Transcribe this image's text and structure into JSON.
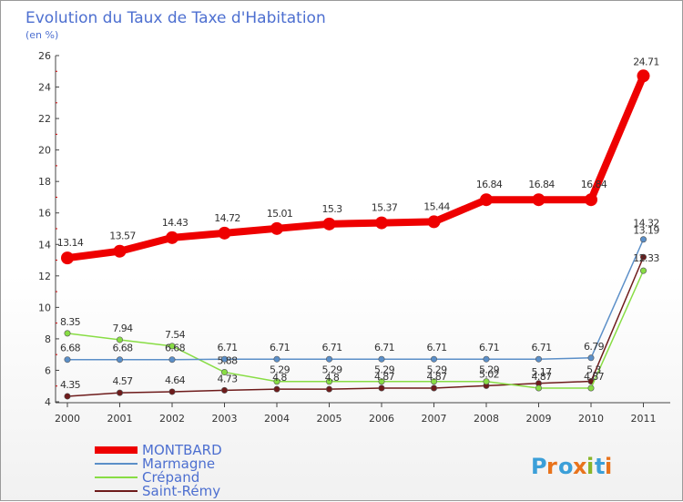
{
  "chart_data": {
    "type": "line",
    "title": "Evolution du Taux de Taxe d'Habitation",
    "subtitle": "(en %)",
    "x": [
      "2000",
      "2001",
      "2002",
      "2003",
      "2004",
      "2005",
      "2006",
      "2007",
      "2008",
      "2009",
      "2010",
      "2011"
    ],
    "ylim": [
      4,
      26
    ],
    "yticks": [
      4,
      6,
      8,
      10,
      12,
      14,
      16,
      18,
      20,
      22,
      24,
      26
    ],
    "grid": false,
    "legend_position": "bottom-left",
    "series": [
      {
        "name": "MONTBARD",
        "color": "#ee0000",
        "values": [
          13.14,
          13.57,
          14.43,
          14.72,
          15.01,
          15.3,
          15.37,
          15.44,
          16.84,
          16.84,
          16.84,
          24.71
        ],
        "labels": [
          "13.14",
          "13.57",
          "14.43",
          "14.72",
          "15.01",
          "15.3",
          "15.37",
          "15.44",
          "16.84",
          "16.84",
          "16.84",
          "24.71"
        ]
      },
      {
        "name": "Marmagne",
        "color": "#5b8fc8",
        "values": [
          6.68,
          6.68,
          6.68,
          6.71,
          6.71,
          6.71,
          6.71,
          6.71,
          6.71,
          6.71,
          6.79,
          14.32
        ],
        "labels": [
          "6.68",
          "6.68",
          "6.68",
          "6.71",
          "6.71",
          "6.71",
          "6.71",
          "6.71",
          "6.71",
          "6.71",
          "6.79",
          "14.32"
        ]
      },
      {
        "name": "Crépand",
        "color": "#88dd44",
        "values": [
          8.35,
          7.94,
          7.54,
          5.88,
          5.29,
          5.29,
          5.29,
          5.29,
          5.29,
          4.87,
          4.87,
          12.33
        ],
        "labels": [
          "8.35",
          "7.94",
          "7.54",
          "5.88",
          "5.29",
          "5.29",
          "5.29",
          "5.29",
          "5.29",
          "4.87",
          "4.87",
          "12.33"
        ]
      },
      {
        "name": "Saint-Rémy",
        "color": "#6e1b1b",
        "values": [
          4.35,
          4.57,
          4.64,
          4.73,
          4.8,
          4.8,
          4.87,
          4.87,
          5.02,
          5.17,
          5.3,
          13.19
        ],
        "labels": [
          "4.35",
          "4.57",
          "4.64",
          "4.73",
          "4.8",
          "4.8",
          "4.87",
          "4.87",
          "5.02",
          "5.17",
          "5.3",
          "13.19"
        ]
      }
    ]
  },
  "logo": {
    "text": "Proxiti",
    "letters": [
      "P",
      "r",
      "o",
      "x",
      "i",
      "t",
      "i"
    ],
    "colors": [
      "#3b9fd8",
      "#e8731c",
      "#3b9fd8",
      "#e8731c",
      "#8ab52a",
      "#3b9fd8",
      "#e8731c"
    ]
  }
}
